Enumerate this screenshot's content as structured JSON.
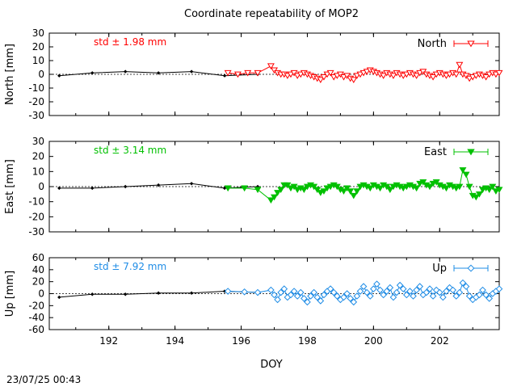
{
  "title": "Coordinate repeatability of MOP2",
  "timestamp": "23/07/25 00:43",
  "xlabel": "DOY",
  "chart_data": [
    {
      "type": "line",
      "panel": "north",
      "ylabel": "North [mm]",
      "legend": "North",
      "std_label": "std ± 1.98 mm",
      "color": "#ff0000",
      "marker": "triangle-down-open",
      "xlim": [
        190.2,
        203.8
      ],
      "ylim": [
        -30,
        30
      ],
      "yticks": [
        -30,
        -20,
        -10,
        0,
        10,
        20,
        30
      ],
      "xticks": [
        192,
        194,
        196,
        198,
        200,
        202
      ],
      "grid": false,
      "legend_position": "top-right",
      "daily": {
        "x": [
          190.5,
          191.5,
          192.5,
          193.5,
          194.5,
          195.5,
          196.5
        ],
        "y": [
          -1,
          1,
          2,
          1,
          2,
          -1,
          0
        ]
      },
      "series": [
        {
          "name": "North",
          "x": [
            195.6,
            195.9,
            196.2,
            196.5,
            196.9,
            197.0,
            197.1,
            197.2,
            197.3,
            197.4,
            197.5,
            197.6,
            197.7,
            197.8,
            197.9,
            198.0,
            198.1,
            198.2,
            198.3,
            198.4,
            198.5,
            198.6,
            198.7,
            198.8,
            198.9,
            199.0,
            199.1,
            199.2,
            199.3,
            199.4,
            199.5,
            199.6,
            199.7,
            199.8,
            199.9,
            200.0,
            200.1,
            200.2,
            200.3,
            200.4,
            200.5,
            200.6,
            200.7,
            200.8,
            200.9,
            201.0,
            201.1,
            201.2,
            201.3,
            201.4,
            201.5,
            201.6,
            201.7,
            201.8,
            201.9,
            202.0,
            202.1,
            202.2,
            202.3,
            202.4,
            202.5,
            202.6,
            202.7,
            202.8,
            202.9,
            203.0,
            203.1,
            203.2,
            203.3,
            203.4,
            203.5,
            203.6,
            203.7,
            203.8
          ],
          "y": [
            1,
            0,
            1,
            1,
            6,
            3,
            1,
            0,
            0,
            -1,
            0,
            1,
            -1,
            0,
            1,
            0,
            -1,
            -2,
            -3,
            -4,
            -2,
            0,
            1,
            -2,
            -1,
            0,
            -2,
            -1,
            -3,
            -4,
            -1,
            0,
            1,
            2,
            3,
            2,
            1,
            0,
            -1,
            1,
            0,
            -1,
            1,
            0,
            -1,
            0,
            1,
            0,
            -1,
            1,
            2,
            0,
            -1,
            -2,
            0,
            1,
            0,
            -1,
            0,
            1,
            0,
            7,
            0,
            -1,
            -3,
            -2,
            -1,
            0,
            -1,
            -2,
            0,
            1,
            0,
            1
          ]
        }
      ]
    },
    {
      "type": "line",
      "panel": "east",
      "ylabel": "East [mm]",
      "legend": "East",
      "std_label": "std ± 3.14 mm",
      "color": "#00c000",
      "marker": "triangle-down-filled",
      "xlim": [
        190.2,
        203.8
      ],
      "ylim": [
        -30,
        30
      ],
      "yticks": [
        -30,
        -20,
        -10,
        0,
        10,
        20,
        30
      ],
      "xticks": [
        192,
        194,
        196,
        198,
        200,
        202
      ],
      "grid": false,
      "legend_position": "top-right",
      "daily": {
        "x": [
          190.5,
          191.5,
          192.5,
          193.5,
          194.5,
          195.5,
          196.5
        ],
        "y": [
          -1,
          -1,
          0,
          1,
          2,
          -1,
          0
        ]
      },
      "series": [
        {
          "name": "East",
          "x": [
            195.6,
            196.1,
            196.5,
            196.9,
            197.0,
            197.1,
            197.2,
            197.3,
            197.4,
            197.5,
            197.6,
            197.7,
            197.8,
            197.9,
            198.0,
            198.1,
            198.2,
            198.3,
            198.4,
            198.5,
            198.6,
            198.7,
            198.8,
            198.9,
            199.0,
            199.1,
            199.2,
            199.3,
            199.4,
            199.5,
            199.6,
            199.7,
            199.8,
            199.9,
            200.0,
            200.1,
            200.2,
            200.3,
            200.4,
            200.5,
            200.6,
            200.7,
            200.8,
            200.9,
            201.0,
            201.1,
            201.2,
            201.3,
            201.4,
            201.5,
            201.6,
            201.7,
            201.8,
            201.9,
            202.0,
            202.1,
            202.2,
            202.3,
            202.4,
            202.5,
            202.6,
            202.7,
            202.8,
            202.9,
            203.0,
            203.1,
            203.2,
            203.3,
            203.4,
            203.5,
            203.6,
            203.7,
            203.8
          ],
          "y": [
            -1,
            -1,
            -2,
            -9,
            -7,
            -4,
            -2,
            1,
            1,
            -1,
            0,
            -2,
            -1,
            -2,
            0,
            1,
            0,
            -2,
            -4,
            -3,
            -1,
            0,
            1,
            0,
            -2,
            -3,
            -1,
            -3,
            -6,
            -3,
            0,
            1,
            0,
            -1,
            1,
            0,
            -1,
            1,
            0,
            -2,
            0,
            1,
            0,
            -1,
            0,
            1,
            0,
            -1,
            2,
            3,
            1,
            0,
            2,
            3,
            1,
            0,
            -1,
            1,
            0,
            -1,
            0,
            11,
            8,
            0,
            -6,
            -7,
            -5,
            -2,
            -1,
            -2,
            0,
            -3,
            -2
          ]
        }
      ]
    },
    {
      "type": "line",
      "panel": "up",
      "ylabel": "Up [mm]",
      "legend": "Up",
      "std_label": "std ± 7.92 mm",
      "color": "#1e8ce6",
      "marker": "diamond-open",
      "xlim": [
        190.2,
        203.8
      ],
      "ylim": [
        -60,
        60
      ],
      "yticks": [
        -60,
        -40,
        -20,
        0,
        20,
        40,
        60
      ],
      "xticks": [
        192,
        194,
        196,
        198,
        200,
        202
      ],
      "grid": false,
      "legend_position": "top-right",
      "daily": {
        "x": [
          190.5,
          191.5,
          192.5,
          193.5,
          194.5,
          195.5,
          196.5
        ],
        "y": [
          -6,
          -1,
          -1,
          1,
          1,
          4,
          2
        ]
      },
      "series": [
        {
          "name": "Up",
          "x": [
            195.6,
            196.1,
            196.5,
            196.9,
            197.0,
            197.1,
            197.2,
            197.3,
            197.4,
            197.5,
            197.6,
            197.7,
            197.8,
            197.9,
            198.0,
            198.1,
            198.2,
            198.3,
            198.4,
            198.5,
            198.6,
            198.7,
            198.8,
            198.9,
            199.0,
            199.1,
            199.2,
            199.3,
            199.4,
            199.5,
            199.6,
            199.7,
            199.8,
            199.9,
            200.0,
            200.1,
            200.2,
            200.3,
            200.4,
            200.5,
            200.6,
            200.7,
            200.8,
            200.9,
            201.0,
            201.1,
            201.2,
            201.3,
            201.4,
            201.5,
            201.6,
            201.7,
            201.8,
            201.9,
            202.0,
            202.1,
            202.2,
            202.3,
            202.4,
            202.5,
            202.6,
            202.7,
            202.8,
            202.9,
            203.0,
            203.1,
            203.2,
            203.3,
            203.4,
            203.5,
            203.6,
            203.7,
            203.8
          ],
          "y": [
            4,
            3,
            2,
            6,
            -2,
            -10,
            2,
            8,
            -6,
            -2,
            4,
            -4,
            2,
            -8,
            -14,
            -4,
            2,
            -6,
            -12,
            -2,
            4,
            8,
            2,
            -4,
            -10,
            -6,
            0,
            -8,
            -14,
            -4,
            4,
            12,
            2,
            -4,
            8,
            16,
            6,
            -2,
            4,
            10,
            -6,
            2,
            14,
            8,
            -2,
            4,
            -4,
            6,
            12,
            -2,
            2,
            8,
            -4,
            6,
            2,
            -6,
            4,
            10,
            6,
            -4,
            2,
            18,
            12,
            -4,
            -10,
            -6,
            -2,
            6,
            -2,
            -8,
            0,
            4,
            8
          ]
        }
      ]
    }
  ]
}
